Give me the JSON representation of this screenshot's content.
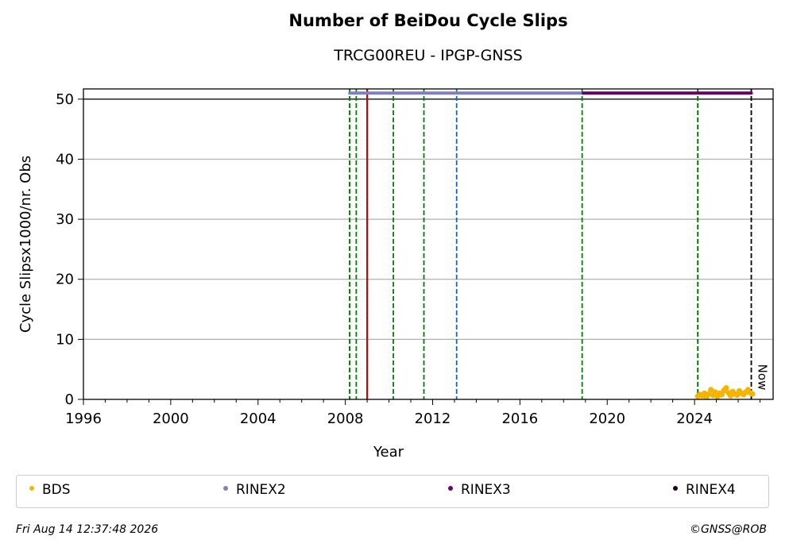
{
  "chart_data": {
    "type": "scatter",
    "title": "Number of BeiDou Cycle Slips",
    "subtitle": "TRCG00REU - IPGP-GNSS",
    "xlabel": "Year",
    "ylabel": "Cycle Slipsx1000/nr. Obs",
    "xlim": [
      1996,
      2027.6
    ],
    "ylim": [
      0,
      51.7
    ],
    "x_ticks": [
      1996,
      2000,
      2004,
      2008,
      2012,
      2016,
      2020,
      2024
    ],
    "y_ticks": [
      0,
      10,
      20,
      30,
      40,
      50
    ],
    "grid": "horizontal",
    "reference_line_y": 50,
    "series": [
      {
        "name": "BDS",
        "color": "#f5b400",
        "points": [
          [
            2024.15,
            0.5
          ],
          [
            2024.25,
            0.8
          ],
          [
            2024.35,
            0.6
          ],
          [
            2024.45,
            1.0
          ],
          [
            2024.55,
            0.4
          ],
          [
            2024.65,
            0.9
          ],
          [
            2024.75,
            1.6
          ],
          [
            2024.85,
            0.7
          ],
          [
            2024.95,
            1.2
          ],
          [
            2025.05,
            0.5
          ],
          [
            2025.15,
            1.0
          ],
          [
            2025.25,
            0.8
          ],
          [
            2025.35,
            1.5
          ],
          [
            2025.45,
            1.9
          ],
          [
            2025.55,
            1.1
          ],
          [
            2025.65,
            0.6
          ],
          [
            2025.75,
            1.3
          ],
          [
            2025.85,
            0.9
          ],
          [
            2025.95,
            0.7
          ],
          [
            2026.05,
            1.4
          ],
          [
            2026.15,
            1.0
          ],
          [
            2026.25,
            0.8
          ],
          [
            2026.35,
            1.2
          ],
          [
            2026.45,
            1.6
          ],
          [
            2026.55,
            1.1
          ],
          [
            2026.65,
            0.9
          ]
        ]
      },
      {
        "name": "RINEX2",
        "color": "#8080c0",
        "x_start": 2008.2,
        "x_end": 2018.9,
        "y": 51
      },
      {
        "name": "RINEX3",
        "color": "#660066",
        "x_start": 2018.9,
        "x_end": 2026.6,
        "y": 51
      },
      {
        "name": "RINEX4",
        "color": "#1a0022"
      }
    ],
    "vertical_lines": [
      {
        "x": 2008.2,
        "color": "#cc0000",
        "style": "dashed"
      },
      {
        "x": 2008.2,
        "color": "#008000",
        "style": "dashed"
      },
      {
        "x": 2008.5,
        "color": "#008000",
        "style": "dashed"
      },
      {
        "x": 2009.0,
        "color": "#cc0000",
        "style": "solid"
      },
      {
        "x": 2010.2,
        "color": "#008000",
        "style": "dashed"
      },
      {
        "x": 2011.6,
        "color": "#008000",
        "style": "dashed"
      },
      {
        "x": 2013.1,
        "color": "#1f5fbf",
        "style": "dashed"
      },
      {
        "x": 2018.85,
        "color": "#008000",
        "style": "dashed"
      },
      {
        "x": 2024.15,
        "color": "#cc0000",
        "style": "dashed"
      },
      {
        "x": 2024.15,
        "color": "#008000",
        "style": "dashed"
      },
      {
        "x": 2026.6,
        "color": "#000000",
        "style": "dashed"
      }
    ],
    "now_label": "Now",
    "legend_position": "bottom"
  },
  "footer": {
    "timestamp": "Fri Aug 14 12:37:48 2026",
    "credit": "©GNSS@ROB"
  }
}
